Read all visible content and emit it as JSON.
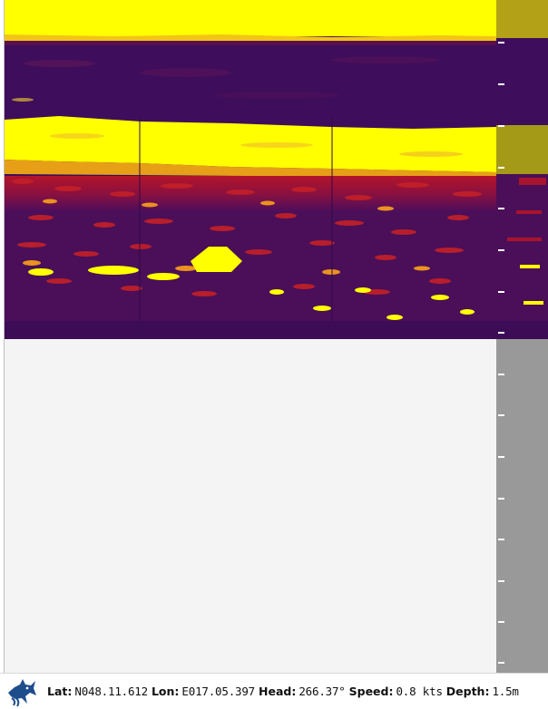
{
  "status": {
    "lat_label": "Lat:",
    "lat_value": "N048.11.612",
    "lon_label": "Lon:",
    "lon_value": "E017.05.397",
    "head_label": "Head:",
    "head_value": "266.37°",
    "speed_label": "Speed:",
    "speed_value": "0.8 kts",
    "depth_label": "Depth:",
    "depth_value": "1.5m"
  },
  "icons": {
    "logo": "fish-logo-icon"
  },
  "colors": {
    "sonar_background": "#3b0b5f",
    "strong_return": "#ffff00",
    "medium_return": "#d8201b",
    "empty_area": "#f4f4f4",
    "depth_strip": "#999999",
    "logo_blue": "#1e4d8c"
  }
}
